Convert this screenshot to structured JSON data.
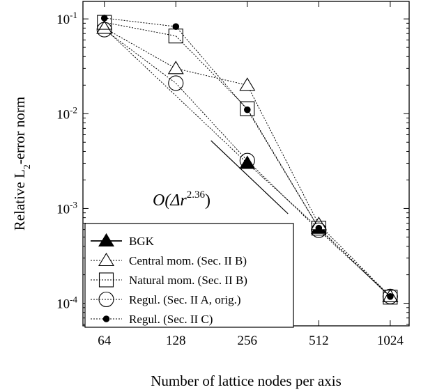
{
  "chart_data": {
    "type": "line",
    "x_scale": "log2",
    "y_scale": "log10",
    "x": [
      64,
      128,
      256,
      512,
      1024
    ],
    "x_ticks": [
      "64",
      "128",
      "256",
      "512",
      "1024"
    ],
    "y_ticks": [
      {
        "base": "10",
        "exp": "-1",
        "value": 0.1
      },
      {
        "base": "10",
        "exp": "-2",
        "value": 0.01
      },
      {
        "base": "10",
        "exp": "-3",
        "value": 0.001
      },
      {
        "base": "10",
        "exp": "-4",
        "value": 0.0001
      }
    ],
    "xlim": [
      52,
      1230
    ],
    "ylim": [
      5.78e-05,
      0.153
    ],
    "xlabel": "Number of lattice nodes per axis",
    "ylabel": {
      "pre": "Relative L",
      "sub": "2",
      "post": "-error norm"
    },
    "series": [
      {
        "name": "BGK",
        "marker": "filled-triangle",
        "values": [
          0.08,
          null,
          0.003,
          0.00062,
          0.000118
        ]
      },
      {
        "name": "Central mom. (Sec. II B)",
        "marker": "open-triangle",
        "values": [
          0.08,
          0.03,
          0.02,
          0.00068,
          0.000118
        ]
      },
      {
        "name": "Natural mom. (Sec. II B)",
        "marker": "open-square",
        "values": [
          0.092,
          0.066,
          0.0113,
          0.00062,
          0.000116
        ]
      },
      {
        "name": "Regul. (Sec. II A, orig.)",
        "marker": "open-circle",
        "values": [
          0.077,
          0.021,
          0.0032,
          0.00059,
          0.000118
        ]
      },
      {
        "name": "Regul. (Sec. II C)",
        "marker": "filled-circle",
        "values": [
          0.102,
          0.083,
          0.011,
          0.00062,
          0.000118
        ]
      }
    ],
    "annotation": {
      "text_main": "O(Δr",
      "exponent": "2.36",
      "text_close": ")",
      "slope_line": {
        "x0": 180,
        "y0": 0.0052,
        "x1": 380,
        "y1": 0.00088
      }
    },
    "legend_position": "bottom-left"
  }
}
